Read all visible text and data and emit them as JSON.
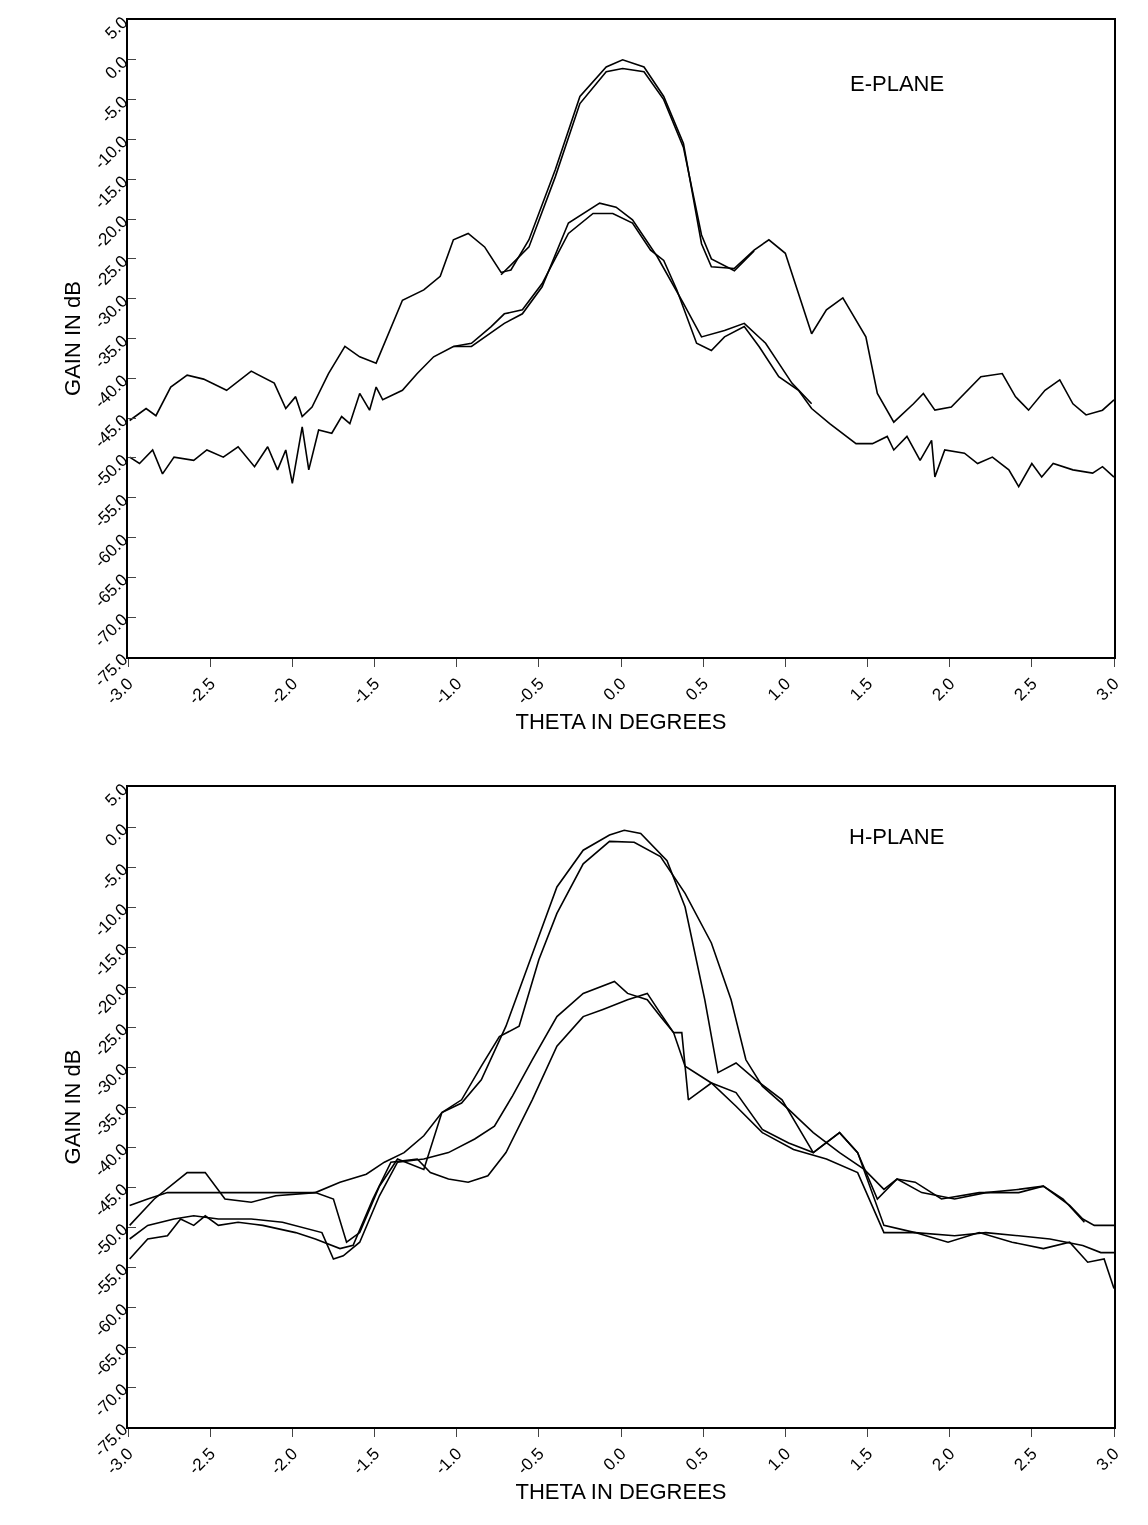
{
  "chart_data": [
    {
      "type": "line",
      "xlabel": "THETA IN DEGREES",
      "ylabel": "GAIN IN dB",
      "annotations": [
        "E-PLANE"
      ],
      "xlim": [
        -3,
        3
      ],
      "ylim": [
        -75,
        5
      ],
      "xticks": [
        {
          "value": -3,
          "label": "-3.0"
        },
        {
          "value": -2.5,
          "label": "-2.5"
        },
        {
          "value": -2,
          "label": "-2.0"
        },
        {
          "value": -1.5,
          "label": "-1.5"
        },
        {
          "value": -1,
          "label": "-1.0"
        },
        {
          "value": -0.5,
          "label": "-0.5"
        },
        {
          "value": 0,
          "label": "0.0"
        },
        {
          "value": 0.5,
          "label": "0.5"
        },
        {
          "value": 1,
          "label": "1.0"
        },
        {
          "value": 1.5,
          "label": "1.5"
        },
        {
          "value": 2,
          "label": "2.0"
        },
        {
          "value": 2.5,
          "label": "2.5"
        },
        {
          "value": 3,
          "label": "3.0"
        }
      ],
      "yticks": [
        {
          "value": 5,
          "label": "5.0"
        },
        {
          "value": 0,
          "label": "0.0"
        },
        {
          "value": -5,
          "label": "-5.0"
        },
        {
          "value": -10,
          "label": "-10.0"
        },
        {
          "value": -15,
          "label": "-15.0"
        },
        {
          "value": -20,
          "label": "-20.0"
        },
        {
          "value": -25,
          "label": "-25.0"
        },
        {
          "value": -30,
          "label": "-30.0"
        },
        {
          "value": -35,
          "label": "-35.0"
        },
        {
          "value": -40,
          "label": "-40.0"
        },
        {
          "value": -45,
          "label": "-45.0"
        },
        {
          "value": -50,
          "label": "-50.0"
        },
        {
          "value": -55,
          "label": "-55.0"
        },
        {
          "value": -60,
          "label": "-60.0"
        },
        {
          "value": -65,
          "label": "-65.0"
        },
        {
          "value": -70,
          "label": "-70.0"
        },
        {
          "value": -75,
          "label": "-75.0"
        }
      ],
      "series": [
        {
          "color": "#000000",
          "x": [
            -2.99,
            -2.89,
            -2.83,
            -2.74,
            -2.64,
            -2.54,
            -2.4,
            -2.25,
            -2.11,
            -2.04,
            -1.98,
            -1.94,
            -1.88,
            -1.78,
            -1.68,
            -1.59,
            -1.49,
            -1.33,
            -1.2,
            -1.1,
            -1.02,
            -0.93,
            -0.83,
            -0.73,
            -0.67,
            -0.56,
            -0.4,
            -0.25,
            -0.09,
            0.01,
            0.14,
            0.26,
            0.38,
            0.49,
            0.55,
            0.69,
            0.81,
            0.9,
            1.0,
            1.16,
            1.25,
            1.35,
            1.49,
            1.56,
            1.66,
            1.78,
            1.84,
            1.91,
            2.01,
            2.19,
            2.32,
            2.4,
            2.48,
            2.58,
            2.67,
            2.75,
            2.83,
            2.93,
            3.0
          ],
          "values": [
            -45.3,
            -43.8,
            -44.7,
            -41.1,
            -39.6,
            -40.1,
            -41.5,
            -39.1,
            -40.6,
            -43.8,
            -42.3,
            -44.8,
            -43.6,
            -39.4,
            -36.0,
            -37.3,
            -38.1,
            -30.2,
            -28.9,
            -27.2,
            -22.6,
            -21.8,
            -23.5,
            -26.7,
            -26.4,
            -22.6,
            -13.8,
            -4.6,
            -0.9,
            0.0,
            -0.9,
            -4.6,
            -10.5,
            -23.1,
            -26.0,
            -26.2,
            -23.9,
            -22.6,
            -24.3,
            -34.4,
            -31.4,
            -29.9,
            -34.8,
            -41.9,
            -45.5,
            -43.2,
            -41.9,
            -44.0,
            -43.6,
            -39.8,
            -39.4,
            -42.3,
            -44.0,
            -41.5,
            -40.2,
            -43.2,
            -44.6,
            -44.0,
            -42.7
          ]
        },
        {
          "color": "#000000",
          "x": [
            -0.73,
            -0.56,
            -0.4,
            -0.25,
            -0.09,
            0.01,
            0.14,
            0.26,
            0.38,
            0.49,
            0.55,
            0.69,
            0.81
          ],
          "values": [
            -27.0,
            -23.5,
            -14.7,
            -5.5,
            -1.5,
            -1.1,
            -1.5,
            -5.0,
            -11.0,
            -22.0,
            -25.0,
            -26.5,
            -24.0
          ]
        },
        {
          "color": "#000000",
          "x": [
            -2.99,
            -2.93,
            -2.85,
            -2.79,
            -2.72,
            -2.6,
            -2.52,
            -2.42,
            -2.33,
            -2.23,
            -2.15,
            -2.09,
            -2.04,
            -2.0,
            -1.94,
            -1.9,
            -1.84,
            -1.76,
            -1.7,
            -1.65,
            -1.59,
            -1.53,
            -1.49,
            -1.45,
            -1.33,
            -1.24,
            -1.14,
            -1.02,
            -0.91,
            -0.79,
            -0.71,
            -0.6,
            -0.48,
            -0.32,
            -0.17,
            -0.05,
            0.07,
            0.18,
            0.26,
            0.34,
            0.46,
            0.55,
            0.63,
            0.75,
            0.84,
            0.96,
            1.08,
            1.16,
            1.27,
            1.43,
            1.53,
            1.62,
            1.66,
            1.74,
            1.82,
            1.89,
            1.91,
            1.97,
            2.09,
            2.17,
            2.26,
            2.36,
            2.42,
            2.5,
            2.56,
            2.63,
            2.75,
            2.87,
            2.93,
            3.0
          ],
          "values": [
            -49.9,
            -50.7,
            -49.0,
            -52.0,
            -49.9,
            -50.3,
            -49.0,
            -49.9,
            -48.6,
            -51.1,
            -48.6,
            -51.5,
            -49.0,
            -53.2,
            -46.1,
            -51.5,
            -46.5,
            -46.9,
            -44.8,
            -45.7,
            -41.9,
            -44.0,
            -41.1,
            -42.7,
            -41.5,
            -39.4,
            -37.3,
            -36.0,
            -35.6,
            -33.5,
            -31.9,
            -31.4,
            -28.1,
            -21.8,
            -19.3,
            -19.3,
            -20.5,
            -23.9,
            -25.2,
            -28.9,
            -35.6,
            -36.5,
            -34.8,
            -33.5,
            -36.0,
            -39.8,
            -41.5,
            -43.8,
            -45.7,
            -48.2,
            -48.2,
            -47.3,
            -49.0,
            -47.3,
            -50.3,
            -47.8,
            -52.4,
            -49.0,
            -49.4,
            -50.7,
            -49.9,
            -51.5,
            -53.6,
            -50.7,
            -52.4,
            -50.7,
            -51.5,
            -51.9,
            -51.1,
            -52.4
          ]
        },
        {
          "color": "#000000",
          "x": [
            -1.02,
            -0.91,
            -0.71,
            -0.6,
            -0.48,
            -0.32,
            -0.13,
            -0.03,
            0.07,
            0.22,
            0.38,
            0.49,
            0.63,
            0.75,
            0.88,
            1.04,
            1.16
          ],
          "values": [
            -36.0,
            -36.0,
            -33.1,
            -31.9,
            -28.5,
            -20.5,
            -18.0,
            -18.5,
            -20.1,
            -24.7,
            -30.6,
            -34.8,
            -34.0,
            -33.1,
            -35.6,
            -40.6,
            -43.2
          ]
        }
      ]
    },
    {
      "type": "line",
      "xlabel": "THETA IN DEGREES",
      "ylabel": "GAIN IN dB",
      "annotations": [
        "H-PLANE"
      ],
      "xlim": [
        -3,
        3
      ],
      "ylim": [
        -75,
        5
      ],
      "xticks": [
        {
          "value": -3,
          "label": "-3.0"
        },
        {
          "value": -2.5,
          "label": "-2.5"
        },
        {
          "value": -2,
          "label": "-2.0"
        },
        {
          "value": -1.5,
          "label": "-1.5"
        },
        {
          "value": -1,
          "label": "-1.0"
        },
        {
          "value": -0.5,
          "label": "-0.5"
        },
        {
          "value": 0,
          "label": "0.0"
        },
        {
          "value": 0.5,
          "label": "0.5"
        },
        {
          "value": 1,
          "label": "1.0"
        },
        {
          "value": 1.5,
          "label": "1.5"
        },
        {
          "value": 2,
          "label": "2.0"
        },
        {
          "value": 2.5,
          "label": "2.5"
        },
        {
          "value": 3,
          "label": "3.0"
        }
      ],
      "yticks": [
        {
          "value": 5,
          "label": "5.0"
        },
        {
          "value": 0,
          "label": "0.0"
        },
        {
          "value": -5,
          "label": "-5.0"
        },
        {
          "value": -10,
          "label": "-10.0"
        },
        {
          "value": -15,
          "label": "-15.0"
        },
        {
          "value": -20,
          "label": "-20.0"
        },
        {
          "value": -25,
          "label": "-25.0"
        },
        {
          "value": -30,
          "label": "-30.0"
        },
        {
          "value": -35,
          "label": "-35.0"
        },
        {
          "value": -40,
          "label": "-40.0"
        },
        {
          "value": -45,
          "label": "-45.0"
        },
        {
          "value": -50,
          "label": "-50.0"
        },
        {
          "value": -55,
          "label": "-55.0"
        },
        {
          "value": -60,
          "label": "-60.0"
        },
        {
          "value": -65,
          "label": "-65.0"
        },
        {
          "value": -70,
          "label": "-70.0"
        },
        {
          "value": -75,
          "label": "-75.0"
        }
      ],
      "series": [
        {
          "color": "#000000",
          "x": [
            -2.99,
            -2.88,
            -2.76,
            -2.64,
            -2.25,
            -1.86,
            -1.71,
            -1.55,
            -1.44,
            -1.32,
            -1.2,
            -1.09,
            -0.97,
            -0.85,
            -0.74,
            -0.62,
            -0.5,
            -0.39,
            -0.23,
            -0.07,
            0.08,
            0.24,
            0.39,
            0.55,
            0.67,
            0.76,
            0.86,
            1.02,
            1.17,
            1.33,
            1.48,
            1.6,
            1.68,
            1.83,
            2.03,
            2.22,
            2.42,
            2.57,
            2.69,
            2.82
          ],
          "values": [
            -47.3,
            -46.5,
            -45.7,
            -45.7,
            -45.7,
            -45.7,
            -44.4,
            -43.4,
            -41.9,
            -40.7,
            -38.6,
            -35.7,
            -34.1,
            -29.9,
            -26.2,
            -24.9,
            -16.6,
            -10.8,
            -4.6,
            -1.8,
            -1.9,
            -3.7,
            -8.3,
            -14.5,
            -21.6,
            -29.1,
            -32.4,
            -35.3,
            -38.2,
            -40.7,
            -42.8,
            -45.3,
            -44.0,
            -45.7,
            -46.5,
            -45.7,
            -45.3,
            -44.9,
            -46.5,
            -49.4
          ]
        },
        {
          "color": "#000000",
          "x": [
            -2.99,
            -2.84,
            -2.64,
            -2.53,
            -2.41,
            -2.25,
            -2.1,
            -1.86,
            -1.75,
            -1.67,
            -1.59,
            -1.47,
            -1.36,
            -1.2,
            -1.09,
            -0.97,
            -0.85,
            -0.7,
            -0.54,
            -0.39,
            -0.23,
            -0.07,
            0.02,
            0.12,
            0.28,
            0.39,
            0.51,
            0.59,
            0.7,
            0.82,
            0.98,
            1.17,
            1.33,
            1.44,
            1.56,
            1.68,
            1.79,
            1.95,
            2.18,
            2.42,
            2.57,
            2.73,
            2.81,
            2.88,
            3.0
          ],
          "values": [
            -49.8,
            -46.5,
            -43.2,
            -43.2,
            -46.5,
            -46.9,
            -46.1,
            -45.7,
            -46.5,
            -51.9,
            -50.7,
            -44.9,
            -41.5,
            -42.8,
            -35.7,
            -34.5,
            -31.6,
            -24.9,
            -15.9,
            -7.5,
            -2.9,
            -1.0,
            -0.4,
            -0.8,
            -4.2,
            -10.0,
            -21.6,
            -30.7,
            -29.5,
            -31.6,
            -34.1,
            -40.7,
            -38.2,
            -40.7,
            -46.5,
            -44.0,
            -44.4,
            -46.5,
            -45.7,
            -45.7,
            -44.9,
            -47.3,
            -49.0,
            -49.8,
            -49.8
          ]
        },
        {
          "color": "#000000",
          "x": [
            -2.99,
            -2.88,
            -2.72,
            -2.6,
            -2.45,
            -2.25,
            -2.06,
            -1.82,
            -1.75,
            -1.69,
            -1.59,
            -1.47,
            -1.36,
            -1.2,
            -1.05,
            -0.89,
            -0.77,
            -0.66,
            -0.54,
            -0.39,
            -0.23,
            -0.04,
            0.04,
            0.16,
            0.24,
            0.32,
            0.39,
            0.55,
            0.7,
            0.86,
            1.05,
            1.25,
            1.44,
            1.6,
            1.79,
            2.03,
            2.22,
            2.42,
            2.61,
            2.81,
            2.92,
            3.0
          ],
          "values": [
            -51.5,
            -49.8,
            -49.0,
            -48.6,
            -49.0,
            -49.0,
            -49.4,
            -50.7,
            -54.0,
            -53.6,
            -51.9,
            -46.1,
            -41.9,
            -41.5,
            -40.7,
            -39.0,
            -37.4,
            -33.6,
            -29.1,
            -23.7,
            -20.8,
            -19.3,
            -20.8,
            -21.6,
            -23.7,
            -25.7,
            -29.9,
            -32.0,
            -34.9,
            -38.2,
            -40.3,
            -41.5,
            -43.2,
            -50.7,
            -50.7,
            -51.1,
            -50.7,
            -51.1,
            -51.5,
            -52.3,
            -53.2,
            -53.2
          ]
        },
        {
          "color": "#000000",
          "x": [
            -2.99,
            -2.88,
            -2.76,
            -2.68,
            -2.6,
            -2.53,
            -2.45,
            -2.33,
            -2.18,
            -1.98,
            -1.86,
            -1.71,
            -1.63,
            -1.51,
            -1.4,
            -1.24,
            -1.16,
            -1.05,
            -0.93,
            -0.81,
            -0.7,
            -0.54,
            -0.39,
            -0.23,
            -0.11,
            0.04,
            0.16,
            0.24,
            0.32,
            0.37,
            0.39,
            0.41,
            0.47,
            0.55,
            0.7,
            0.86,
            1.02,
            1.17,
            1.33,
            1.44,
            1.6,
            1.79,
            1.99,
            2.18,
            2.38,
            2.57,
            2.73,
            2.84,
            2.94,
            3.0
          ],
          "values": [
            -54.0,
            -51.5,
            -51.1,
            -49.0,
            -49.8,
            -48.6,
            -49.8,
            -49.4,
            -49.8,
            -50.7,
            -51.5,
            -52.7,
            -52.3,
            -46.5,
            -41.9,
            -41.5,
            -43.2,
            -44.0,
            -44.4,
            -43.6,
            -40.7,
            -34.1,
            -27.4,
            -23.7,
            -22.8,
            -21.6,
            -20.8,
            -23.3,
            -25.7,
            -25.7,
            -29.9,
            -34.1,
            -33.2,
            -32.0,
            -33.2,
            -37.8,
            -39.5,
            -40.7,
            -38.2,
            -40.7,
            -49.8,
            -50.7,
            -51.9,
            -50.7,
            -51.9,
            -52.7,
            -51.9,
            -54.4,
            -54.0,
            -57.7
          ]
        }
      ]
    }
  ]
}
